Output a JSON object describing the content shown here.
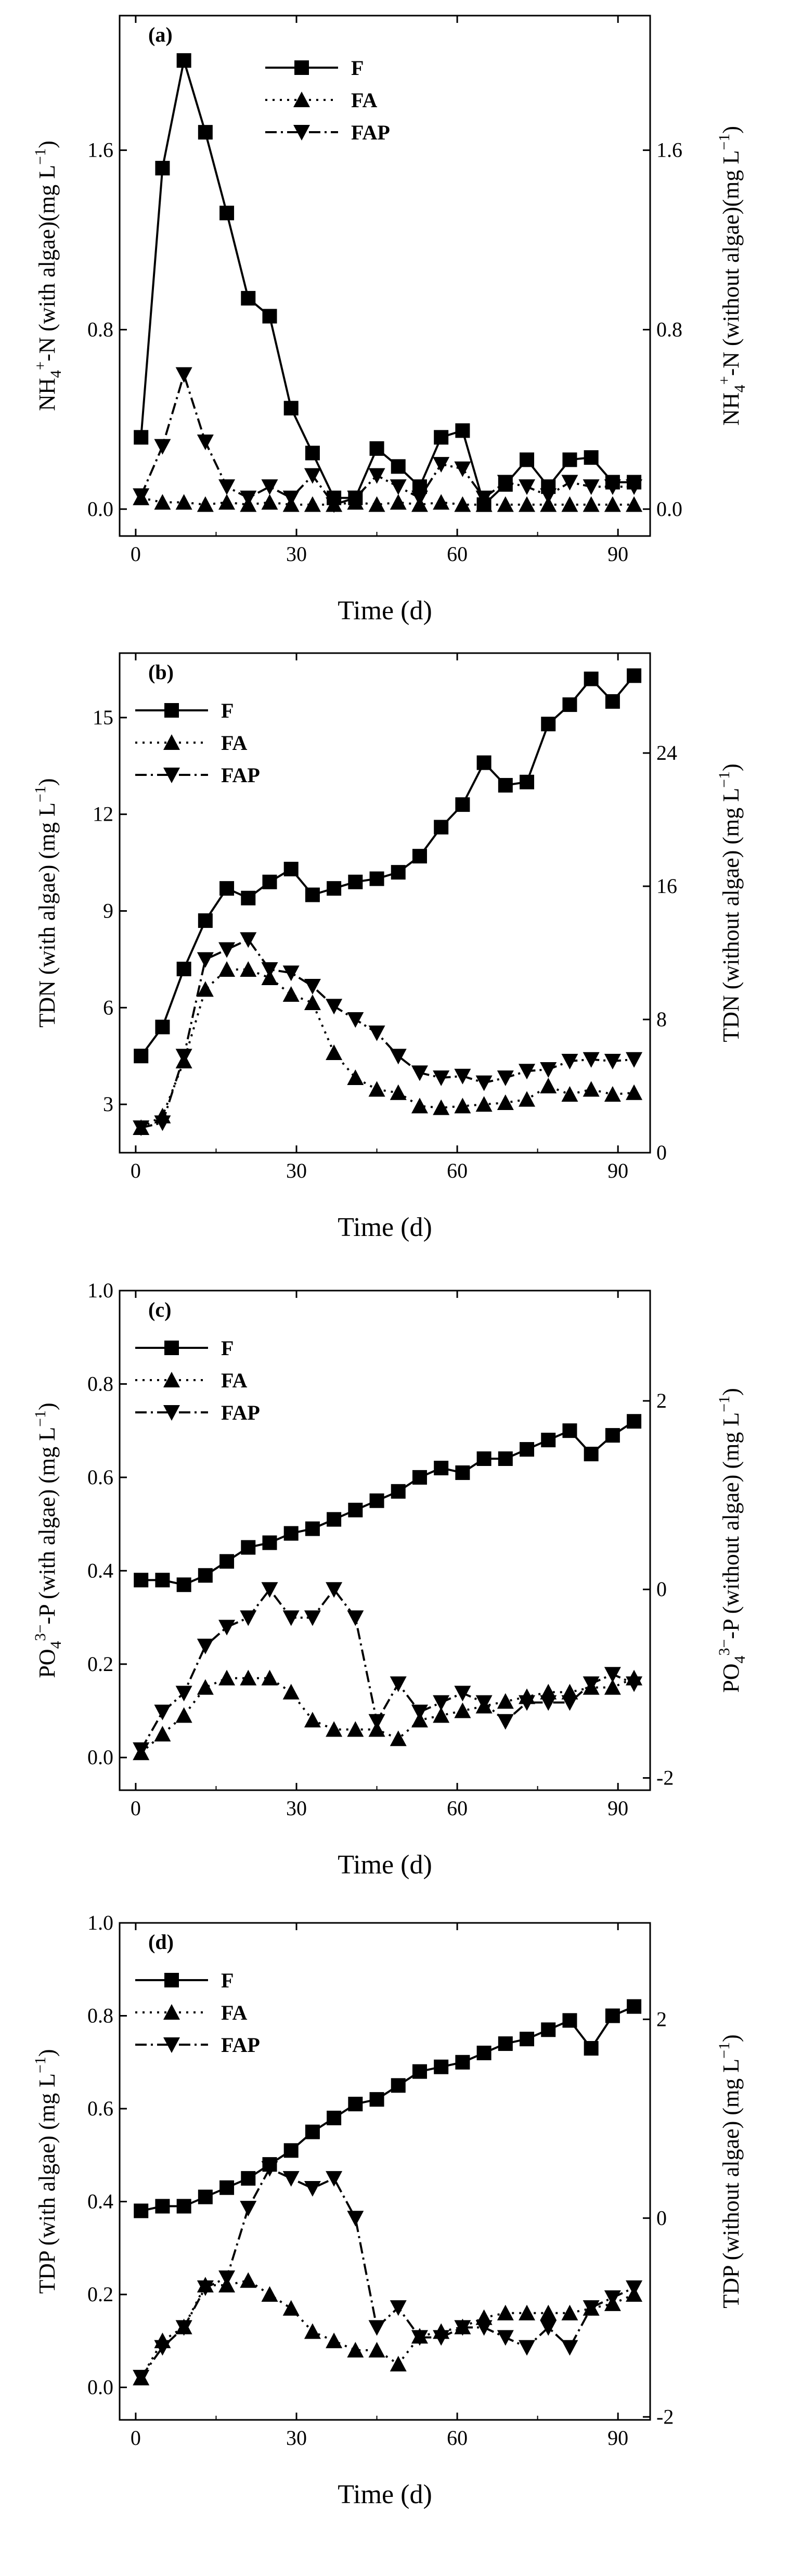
{
  "figure": {
    "colors": {
      "ink": "#000000",
      "background": "#ffffff"
    }
  },
  "chart_data": [
    {
      "type": "line",
      "panel": "(a)",
      "title": "",
      "xlabel": "Time (d)",
      "ylabel_main": "NH4+-N (with algae)(mg L−1)",
      "ylabel_main_parts": [
        "NH",
        "4",
        "+",
        "-N (with algae)(mg L",
        "−1",
        ")"
      ],
      "ylabel_right": "NH4+-N (without algae)(mg L−1)",
      "ylabel_right_parts": [
        "NH",
        "4",
        "+",
        "-N (without algae)(mg L",
        "−1",
        ")"
      ],
      "xlim": [
        -3,
        96
      ],
      "ylim": [
        -0.12,
        2.2
      ],
      "ylim_right": [
        -0.12,
        2.2
      ],
      "xticks": [
        0,
        30,
        60,
        90
      ],
      "yticks": [
        0.0,
        0.8,
        1.6
      ],
      "yticks_right": [
        0.0,
        0.8,
        1.6
      ],
      "ytick_labels": [
        "0.0",
        "0.8",
        "1.6"
      ],
      "ytick_labels_right": [
        "0.0",
        "0.8",
        "1.6"
      ],
      "legend": {
        "position": "top-center",
        "entries": [
          "F",
          "FA",
          "FAP"
        ]
      },
      "series": [
        {
          "name": "F",
          "style": "solid",
          "marker": "square",
          "x": [
            1,
            5,
            9,
            13,
            17,
            21,
            25,
            29,
            33,
            37,
            41,
            45,
            49,
            53,
            57,
            61,
            65,
            69,
            73,
            77,
            81,
            85,
            89,
            93
          ],
          "y": [
            0.32,
            1.52,
            2.0,
            1.68,
            1.32,
            0.94,
            0.86,
            0.45,
            0.25,
            0.05,
            0.05,
            0.27,
            0.19,
            0.1,
            0.32,
            0.35,
            0.02,
            0.11,
            0.22,
            0.1,
            0.22,
            0.23,
            0.12,
            0.12
          ]
        },
        {
          "name": "FA",
          "style": "dotted",
          "marker": "triangle-up",
          "x": [
            1,
            5,
            9,
            13,
            17,
            21,
            25,
            29,
            33,
            37,
            41,
            45,
            49,
            53,
            57,
            61,
            65,
            69,
            73,
            77,
            81,
            85,
            89,
            93
          ],
          "y": [
            0.05,
            0.03,
            0.03,
            0.02,
            0.03,
            0.02,
            0.03,
            0.02,
            0.02,
            0.02,
            0.03,
            0.02,
            0.03,
            0.02,
            0.03,
            0.02,
            0.02,
            0.02,
            0.02,
            0.02,
            0.02,
            0.02,
            0.02,
            0.02
          ]
        },
        {
          "name": "FAP",
          "style": "dashdot",
          "marker": "triangle-down",
          "x": [
            1,
            5,
            9,
            13,
            17,
            21,
            25,
            29,
            33,
            37,
            41,
            45,
            49,
            53,
            57,
            61,
            65,
            69,
            73,
            77,
            81,
            85,
            89,
            93
          ],
          "y": [
            0.06,
            0.28,
            0.6,
            0.3,
            0.1,
            0.05,
            0.1,
            0.05,
            0.15,
            0.02,
            0.05,
            0.15,
            0.1,
            0.05,
            0.2,
            0.18,
            0.05,
            0.12,
            0.1,
            0.06,
            0.12,
            0.1,
            0.1,
            0.1
          ]
        }
      ]
    },
    {
      "type": "line",
      "panel": "(b)",
      "title": "",
      "xlabel": "Time (d)",
      "ylabel_main": "TDN (with algae) (mg L−1)",
      "ylabel_main_parts": [
        "TDN (with algae) (mg L",
        "−1",
        ")"
      ],
      "ylabel_right": "TDN (without algae) (mg L−1)",
      "ylabel_right_parts": [
        "TDN (without algae) (mg L",
        "−1",
        ")"
      ],
      "xlim": [
        -3,
        96
      ],
      "ylim": [
        1.5,
        17
      ],
      "ylim_right": [
        0,
        30
      ],
      "xticks": [
        0,
        30,
        60,
        90
      ],
      "yticks": [
        3,
        6,
        9,
        12,
        15
      ],
      "yticks_right": [
        0,
        8,
        16,
        24
      ],
      "ytick_labels": [
        "3",
        "6",
        "9",
        "12",
        "15"
      ],
      "ytick_labels_right": [
        "0",
        "8",
        "16",
        "24"
      ],
      "legend": {
        "position": "top-left",
        "entries": [
          "F",
          "FA",
          "FAP"
        ]
      },
      "series": [
        {
          "name": "F",
          "style": "solid",
          "marker": "square",
          "x": [
            1,
            5,
            9,
            13,
            17,
            21,
            25,
            29,
            33,
            37,
            41,
            45,
            49,
            53,
            57,
            61,
            65,
            69,
            73,
            77,
            81,
            85,
            89,
            93
          ],
          "y": [
            4.5,
            5.4,
            7.2,
            8.7,
            9.7,
            9.4,
            9.9,
            10.3,
            9.5,
            9.7,
            9.9,
            10.0,
            10.2,
            10.7,
            11.6,
            12.3,
            13.6,
            12.9,
            13.0,
            14.8,
            15.4,
            16.2,
            15.5,
            16.3
          ]
        },
        {
          "name": "FA",
          "style": "dotted",
          "marker": "triangle-up",
          "axis": "right",
          "x": [
            1,
            5,
            9,
            13,
            17,
            21,
            25,
            29,
            33,
            37,
            41,
            45,
            49,
            53,
            57,
            61,
            65,
            69,
            73,
            77,
            81,
            85,
            89,
            93
          ],
          "y": [
            1.5,
            2.2,
            5.5,
            9.8,
            11.0,
            11.0,
            10.5,
            9.5,
            9.0,
            6.0,
            4.5,
            3.8,
            3.6,
            2.8,
            2.7,
            2.8,
            2.9,
            3.0,
            3.2,
            4.0,
            3.5,
            3.8,
            3.5,
            3.6
          ]
        },
        {
          "name": "FAP",
          "style": "dashdot",
          "marker": "triangle-down",
          "axis": "right",
          "x": [
            1,
            5,
            9,
            13,
            17,
            21,
            25,
            29,
            33,
            37,
            41,
            45,
            49,
            53,
            57,
            61,
            65,
            69,
            73,
            77,
            81,
            85,
            89,
            93
          ],
          "y": [
            1.5,
            1.8,
            5.8,
            11.6,
            12.2,
            12.8,
            11.0,
            10.8,
            10.0,
            8.8,
            8.0,
            7.2,
            5.8,
            4.8,
            4.5,
            4.6,
            4.2,
            4.5,
            4.9,
            5.0,
            5.5,
            5.6,
            5.5,
            5.6
          ]
        }
      ]
    },
    {
      "type": "line",
      "panel": "(c)",
      "title": "",
      "xlabel": "Time (d)",
      "ylabel_main": "PO43−-P (with algae) (mg L−1)",
      "ylabel_main_parts": [
        "PO",
        "4",
        "3−",
        "-P (with algae) (mg L",
        "−1",
        ")"
      ],
      "ylabel_right": "PO43−-P (without algae) (mg L−1)",
      "ylabel_right_parts": [
        "PO",
        "4",
        "3−",
        "-P (without algae) (mg L",
        "−1",
        ")"
      ],
      "xlim": [
        -3,
        96
      ],
      "ylim": [
        -0.07,
        1.0
      ],
      "ylim_right": [
        -2.13,
        3.17
      ],
      "xticks": [
        0,
        30,
        60,
        90
      ],
      "yticks": [
        0.0,
        0.2,
        0.4,
        0.6,
        0.8,
        1.0
      ],
      "yticks_right": [
        -2,
        0,
        2
      ],
      "ytick_labels": [
        "0.0",
        "0.2",
        "0.4",
        "0.6",
        "0.8",
        "1.0"
      ],
      "ytick_labels_right": [
        "-2",
        "0",
        "2"
      ],
      "legend": {
        "position": "top-left",
        "entries": [
          "F",
          "FA",
          "FAP"
        ]
      },
      "series": [
        {
          "name": "F",
          "style": "solid",
          "marker": "square",
          "x": [
            1,
            5,
            9,
            13,
            17,
            21,
            25,
            29,
            33,
            37,
            41,
            45,
            49,
            53,
            57,
            61,
            65,
            69,
            73,
            77,
            81,
            85,
            89,
            93
          ],
          "y": [
            0.38,
            0.38,
            0.37,
            0.39,
            0.42,
            0.45,
            0.46,
            0.48,
            0.49,
            0.51,
            0.53,
            0.55,
            0.57,
            0.6,
            0.62,
            0.61,
            0.64,
            0.64,
            0.66,
            0.68,
            0.7,
            0.65,
            0.69,
            0.72
          ]
        },
        {
          "name": "FA",
          "style": "dotted",
          "marker": "triangle-up",
          "x": [
            1,
            5,
            9,
            13,
            17,
            21,
            25,
            29,
            33,
            37,
            41,
            45,
            49,
            53,
            57,
            61,
            65,
            69,
            73,
            77,
            81,
            85,
            89,
            93
          ],
          "y": [
            0.01,
            0.05,
            0.09,
            0.15,
            0.17,
            0.17,
            0.17,
            0.14,
            0.08,
            0.06,
            0.06,
            0.06,
            0.04,
            0.08,
            0.09,
            0.1,
            0.11,
            0.12,
            0.13,
            0.14,
            0.14,
            0.15,
            0.15,
            0.17
          ]
        },
        {
          "name": "FAP",
          "style": "dashdot",
          "marker": "triangle-down",
          "axis": "right",
          "x": [
            1,
            5,
            9,
            13,
            17,
            21,
            25,
            29,
            33,
            37,
            41,
            45,
            49,
            53,
            57,
            61,
            65,
            69,
            73,
            77,
            81,
            85,
            89,
            93
          ],
          "y": [
            -1.7,
            -1.3,
            -1.1,
            -0.6,
            -0.4,
            -0.3,
            0.0,
            -0.3,
            -0.3,
            0.0,
            -0.3,
            -1.4,
            -1.0,
            -1.3,
            -1.2,
            -1.1,
            -1.2,
            -1.4,
            -1.2,
            -1.2,
            -1.2,
            -1.0,
            -0.9,
            -1.0
          ]
        }
      ]
    },
    {
      "type": "line",
      "panel": "(d)",
      "title": "",
      "xlabel": "Time (d)",
      "ylabel_main": "TDP (with algae) (mg L−1)",
      "ylabel_main_parts": [
        "TDP (with algae) (mg L",
        "−1",
        ")"
      ],
      "ylabel_right": "TDP (without algae) (mg L−1)",
      "ylabel_right_parts": [
        "TDP (without algae) (mg L",
        "−1",
        ")"
      ],
      "xlim": [
        -3,
        96
      ],
      "ylim": [
        -0.07,
        1.0
      ],
      "ylim_right": [
        -2.03,
        2.97
      ],
      "xticks": [
        0,
        30,
        60,
        90
      ],
      "yticks": [
        0.0,
        0.2,
        0.4,
        0.6,
        0.8,
        1.0
      ],
      "yticks_right": [
        -2,
        0,
        2
      ],
      "ytick_labels": [
        "0.0",
        "0.2",
        "0.4",
        "0.6",
        "0.8",
        "1.0"
      ],
      "ytick_labels_right": [
        "-2",
        "0",
        "2"
      ],
      "legend": {
        "position": "top-left",
        "entries": [
          "F",
          "FA",
          "FAP"
        ]
      },
      "series": [
        {
          "name": "F",
          "style": "solid",
          "marker": "square",
          "x": [
            1,
            5,
            9,
            13,
            17,
            21,
            25,
            29,
            33,
            37,
            41,
            45,
            49,
            53,
            57,
            61,
            65,
            69,
            73,
            77,
            81,
            85,
            89,
            93
          ],
          "y": [
            0.38,
            0.39,
            0.39,
            0.41,
            0.43,
            0.45,
            0.48,
            0.51,
            0.55,
            0.58,
            0.61,
            0.62,
            0.65,
            0.68,
            0.69,
            0.7,
            0.72,
            0.74,
            0.75,
            0.77,
            0.79,
            0.73,
            0.8,
            0.82
          ]
        },
        {
          "name": "FA",
          "style": "dotted",
          "marker": "triangle-up",
          "x": [
            1,
            5,
            9,
            13,
            17,
            21,
            25,
            29,
            33,
            37,
            41,
            45,
            49,
            53,
            57,
            61,
            65,
            69,
            73,
            77,
            81,
            85,
            89,
            93
          ],
          "y": [
            0.02,
            0.1,
            0.13,
            0.22,
            0.22,
            0.23,
            0.2,
            0.17,
            0.12,
            0.1,
            0.08,
            0.08,
            0.05,
            0.11,
            0.12,
            0.13,
            0.15,
            0.16,
            0.16,
            0.16,
            0.16,
            0.17,
            0.18,
            0.2
          ]
        },
        {
          "name": "FAP",
          "style": "dashdot",
          "marker": "triangle-down",
          "axis": "right",
          "x": [
            1,
            5,
            9,
            13,
            17,
            21,
            25,
            29,
            33,
            37,
            41,
            45,
            49,
            53,
            57,
            61,
            65,
            69,
            73,
            77,
            81,
            85,
            89,
            93
          ],
          "y": [
            -1.6,
            -1.3,
            -1.1,
            -0.7,
            -0.6,
            0.1,
            0.5,
            0.4,
            0.3,
            0.4,
            0.0,
            -1.1,
            -0.9,
            -1.2,
            -1.2,
            -1.1,
            -1.1,
            -1.2,
            -1.3,
            -1.1,
            -1.3,
            -0.9,
            -0.8,
            -0.7
          ]
        }
      ]
    }
  ]
}
